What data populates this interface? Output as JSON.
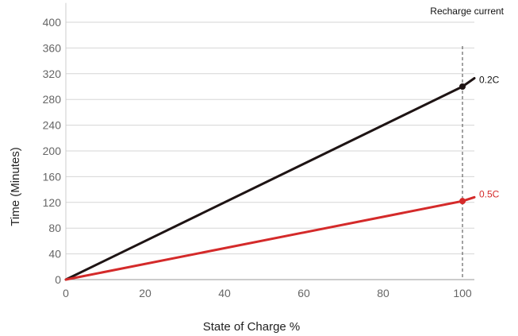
{
  "chart_data": {
    "type": "line",
    "xlabel": "State of Charge %",
    "ylabel": "Time (Minutes)",
    "legend_title": "Recharge current",
    "xlim": [
      0,
      103
    ],
    "ylim": [
      0,
      430
    ],
    "xticks": [
      0,
      20,
      40,
      60,
      80,
      100
    ],
    "yticks": [
      0,
      40,
      80,
      120,
      160,
      200,
      240,
      280,
      320,
      360,
      400
    ],
    "grid": "horizontal",
    "reference_line_x": 100,
    "series": [
      {
        "name": "0.2C",
        "color": "#1e1414",
        "points": [
          [
            0,
            0
          ],
          [
            100,
            300
          ],
          [
            103,
            313
          ]
        ],
        "marker": [
          100,
          300
        ]
      },
      {
        "name": "0.5C",
        "color": "#d42a2a",
        "points": [
          [
            0,
            0
          ],
          [
            100,
            122
          ],
          [
            103,
            128
          ]
        ],
        "marker": [
          100,
          122
        ]
      }
    ]
  }
}
